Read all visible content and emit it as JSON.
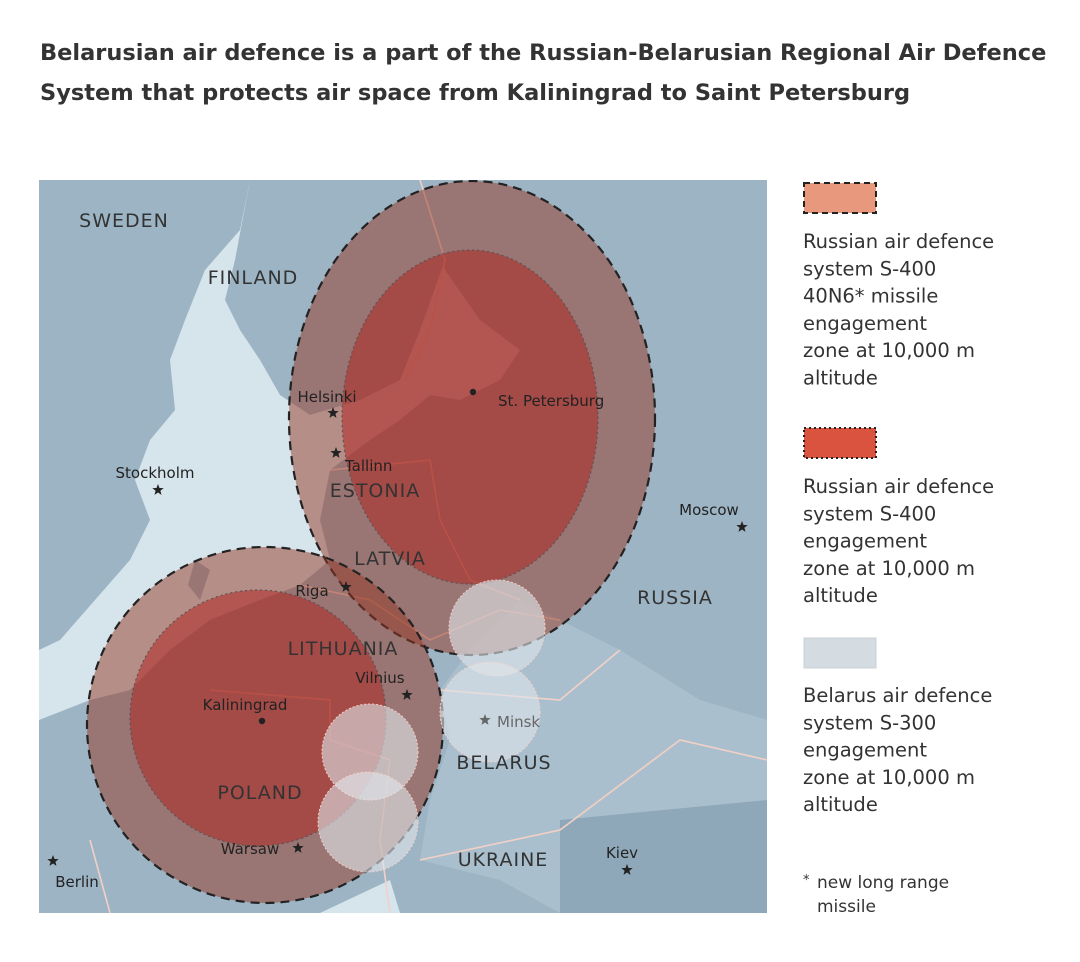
{
  "title_lines": [
    "Belarusian air defence is a part of the Russian-Belarusian Regional Air Defence",
    "System that protects air space from Kaliningrad to Saint Petersburg"
  ],
  "map": {
    "countries": [
      {
        "label": "SWEDEN"
      },
      {
        "label": "FINLAND"
      },
      {
        "label": "ESTONIA"
      },
      {
        "label": "LATVIA"
      },
      {
        "label": "LITHUANIA"
      },
      {
        "label": "POLAND"
      },
      {
        "label": "BELARUS"
      },
      {
        "label": "UKRAINE"
      },
      {
        "label": "RUSSIA"
      }
    ],
    "cities": [
      {
        "label": "Helsinki"
      },
      {
        "label": "St. Petersburg"
      },
      {
        "label": "Tallinn"
      },
      {
        "label": "Stockholm"
      },
      {
        "label": "Moscow"
      },
      {
        "label": "Riga"
      },
      {
        "label": "Vilnius"
      },
      {
        "label": "Kaliningrad"
      },
      {
        "label": "Minsk"
      },
      {
        "label": "Warsaw"
      },
      {
        "label": "Kiev"
      },
      {
        "label": "Berlin"
      }
    ]
  },
  "legend": {
    "items": [
      {
        "lines": [
          "Russian air defence",
          "system S-400",
          "40N6* missile",
          "engagement",
          "zone at 10,000 m",
          "altitude"
        ]
      },
      {
        "lines": [
          "Russian air defence",
          "system S-400",
          "engagement",
          "zone at 10,000 m",
          "altitude"
        ]
      },
      {
        "lines": [
          "Belarus air defence",
          "system S-300",
          "engagement",
          "zone at 10,000 m",
          "altitude"
        ]
      }
    ]
  },
  "footnote": {
    "marker": "*",
    "lines": [
      "new long range",
      "missile"
    ]
  }
}
